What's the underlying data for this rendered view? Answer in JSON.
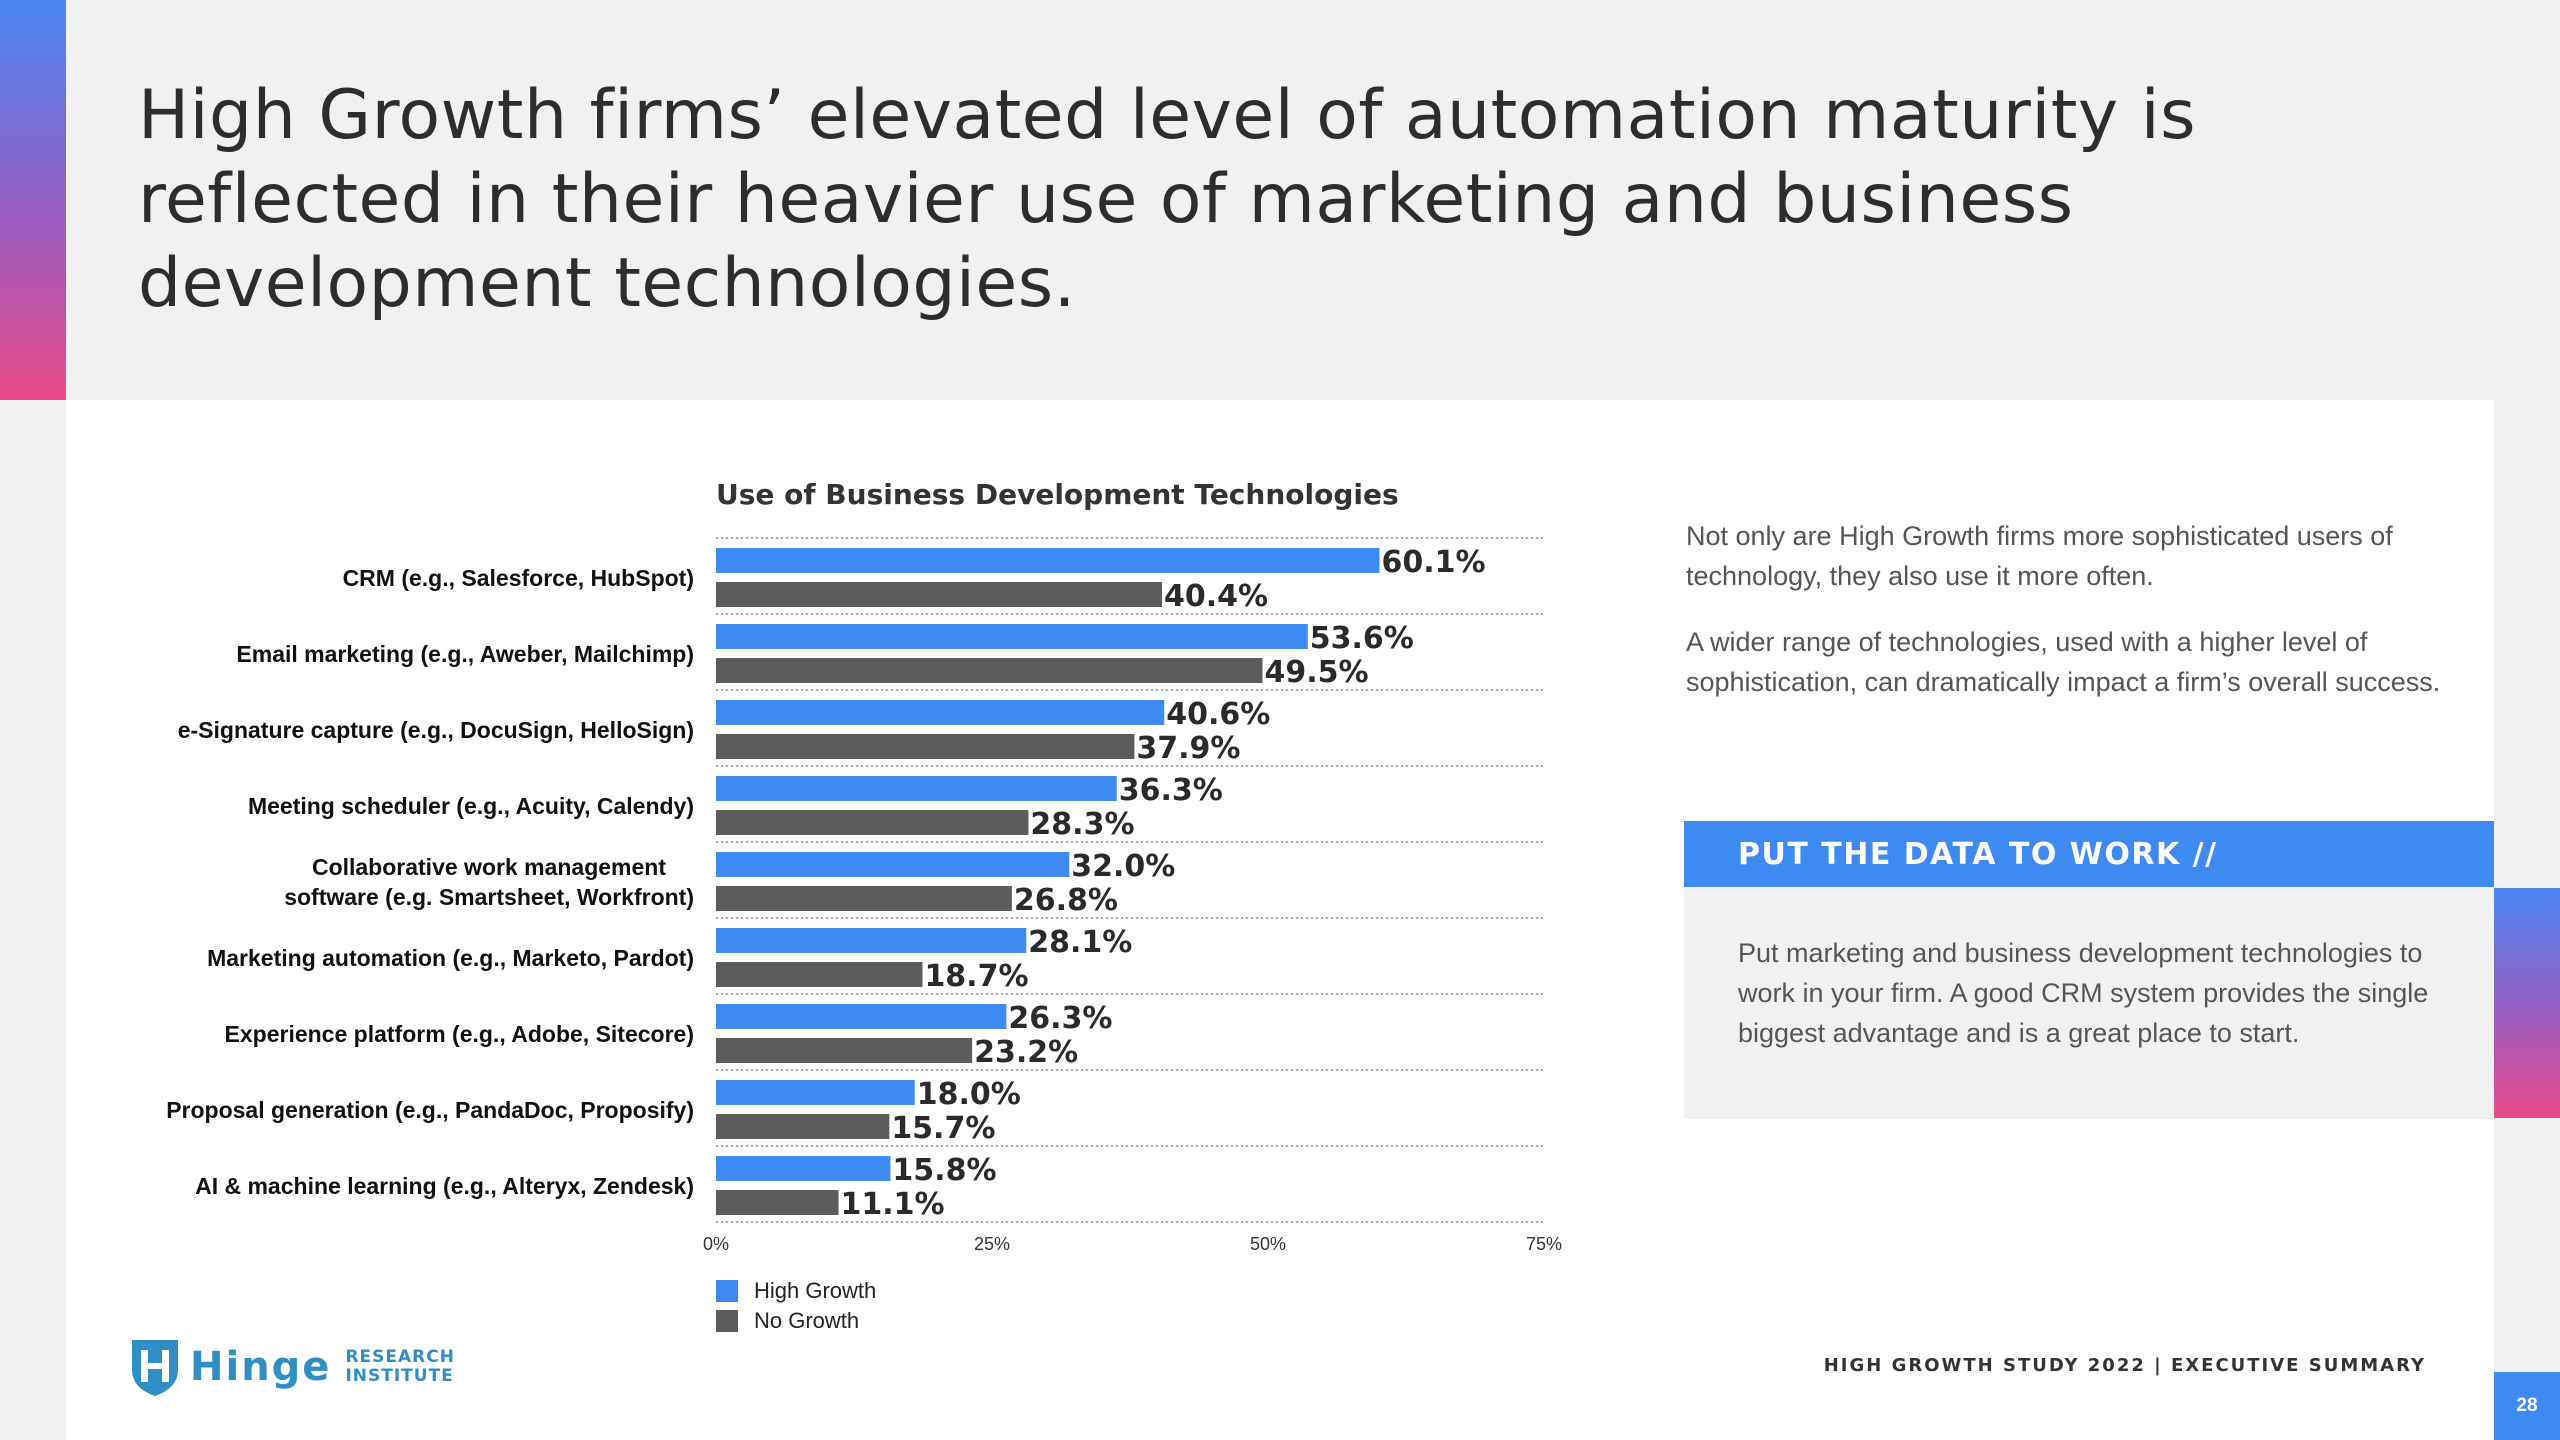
{
  "title": "High Growth firms’ elevated level of automation maturity is reflected in their heavier use of marketing and business development technologies.",
  "chart_data": {
    "type": "bar",
    "orientation": "horizontal",
    "title": "Use of Business Development Technologies",
    "categories": [
      "CRM (e.g., Salesforce, HubSpot)",
      "Email marketing (e.g., Aweber, Mailchimp)",
      "e-Signature capture (e.g., DocuSign, HelloSign)",
      "Meeting scheduler (e.g., Acuity, Calendy)",
      "Collaborative work management software (e.g. Smartsheet, Workfront)",
      "Marketing automation (e.g., Marketo, Pardot)",
      "Experience platform (e.g., Adobe, Sitecore)",
      "Proposal generation (e.g., PandaDoc, Proposify)",
      "AI & machine learning (e.g., Alteryx, Zendesk)"
    ],
    "category_lines": [
      [
        "CRM (e.g., Salesforce, HubSpot)"
      ],
      [
        "Email marketing (e.g., Aweber, Mailchimp)"
      ],
      [
        "e-Signature capture (e.g., DocuSign, HelloSign)"
      ],
      [
        "Meeting scheduler (e.g., Acuity, Calendy)"
      ],
      [
        "Collaborative work management",
        "software (e.g. Smartsheet, Workfront)"
      ],
      [
        "Marketing automation (e.g., Marketo, Pardot)"
      ],
      [
        "Experience platform (e.g., Adobe, Sitecore)"
      ],
      [
        "Proposal generation (e.g., PandaDoc, Proposify)"
      ],
      [
        "AI & machine learning (e.g., Alteryx, Zendesk)"
      ]
    ],
    "series": [
      {
        "name": "High Growth",
        "color": "#3d8bf2",
        "values": [
          60.1,
          53.6,
          40.6,
          36.3,
          32.0,
          28.1,
          26.3,
          18.0,
          15.8
        ],
        "labels": [
          "60.1%",
          "53.6%",
          "40.6%",
          "36.3%",
          "32.0%",
          "28.1%",
          "26.3%",
          "18.0%",
          "15.8%"
        ]
      },
      {
        "name": "No Growth",
        "color": "#5c5c5c",
        "values": [
          40.4,
          49.5,
          37.9,
          28.3,
          26.8,
          18.7,
          23.2,
          15.7,
          11.1
        ],
        "labels": [
          "40.4%",
          "49.5%",
          "37.9%",
          "28.3%",
          "26.8%",
          "18.7%",
          "23.2%",
          "15.7%",
          "11.1%"
        ]
      }
    ],
    "xlim": [
      0,
      75
    ],
    "ticks": [
      0,
      25,
      50,
      75
    ],
    "tick_labels": [
      "0%",
      "25%",
      "50%",
      "75%"
    ],
    "grid": "dotted horizontal separators between categories",
    "legend": "bottom-left"
  },
  "side": {
    "para1": "Not only are High Growth firms more sophisticated users of technology, they also use it more often.",
    "para2": "A wider range of technologies, used with a higher level of sophistication, can dramatically impact a firm’s overall success."
  },
  "cta": {
    "heading": "PUT THE DATA TO WORK  //",
    "body": "Put marketing and business development technologies to work in your firm. A good CRM system provides the single biggest advantage and is a great place to start."
  },
  "logo": {
    "word": "Hinge",
    "sub1": "RESEARCH",
    "sub2": "INSTITUTE"
  },
  "footer": {
    "text": "HIGH GROWTH STUDY 2022   |   EXECUTIVE SUMMARY"
  },
  "page_number": "28",
  "colors": {
    "accent": "#3d8bf2",
    "dark_bar": "#5c5c5c",
    "gradient_pink": "#e84a87"
  }
}
